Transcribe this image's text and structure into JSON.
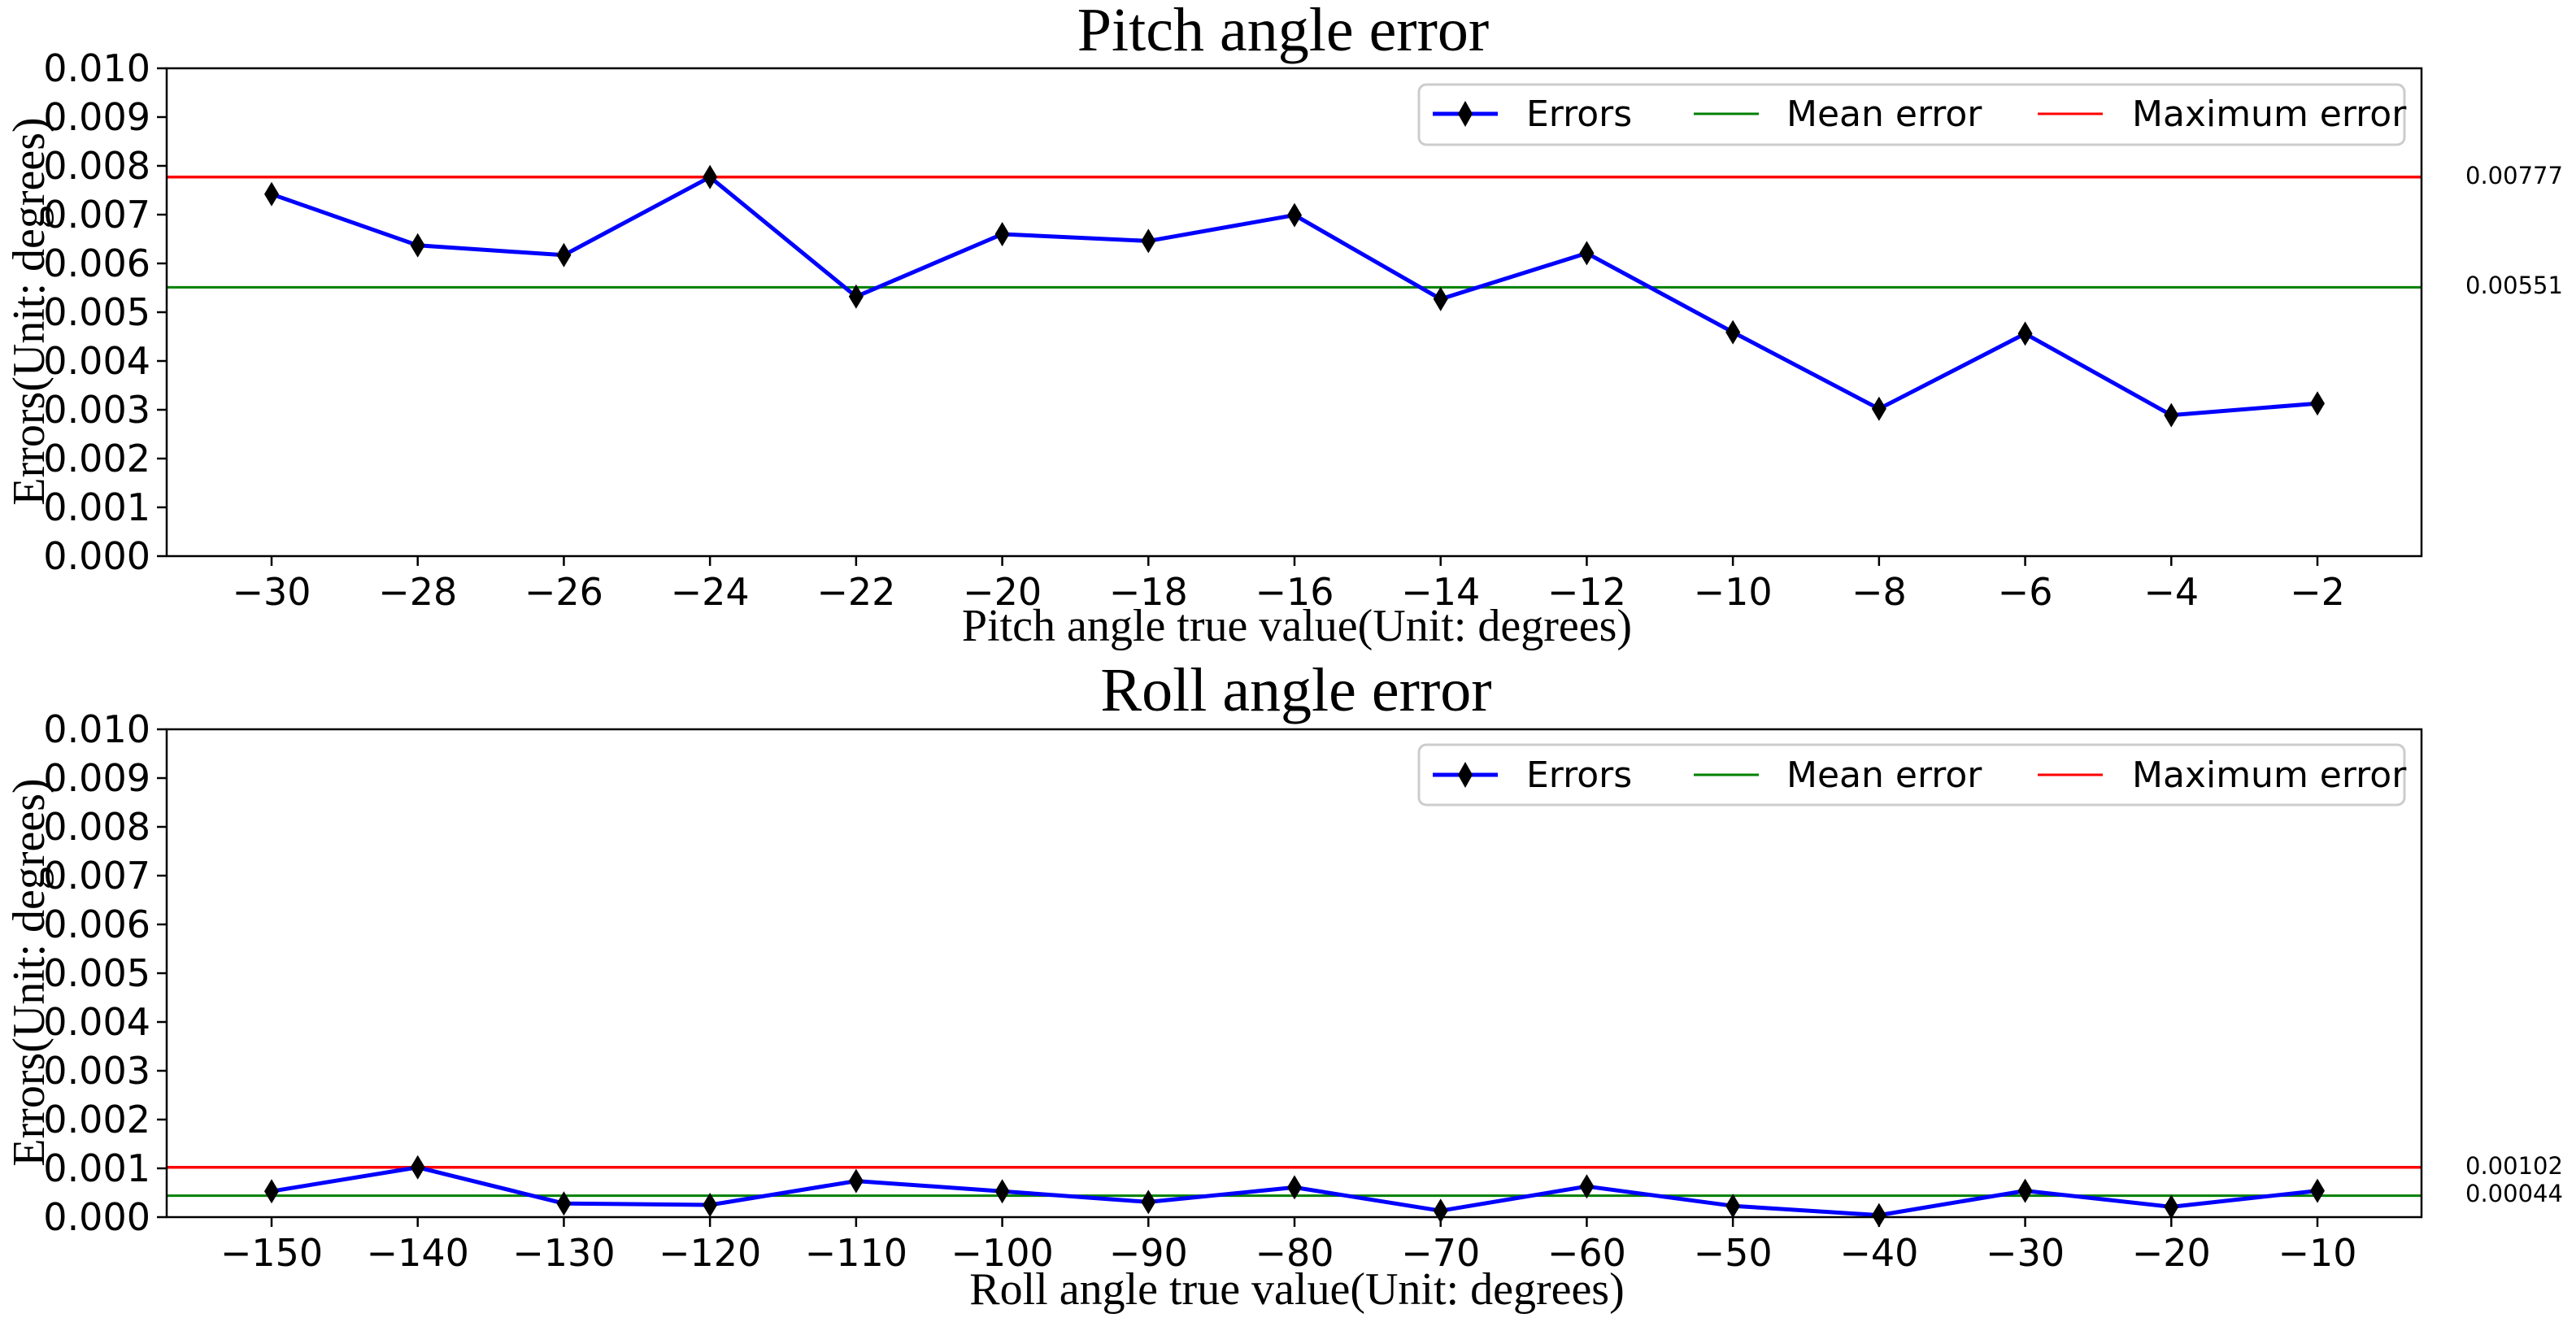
{
  "chart_data": [
    {
      "type": "line",
      "title": "Pitch angle error",
      "xlabel": "Pitch angle true value(Unit: degrees)",
      "ylabel": "Errors(Unit: degrees)",
      "x": [
        -30,
        -28,
        -26,
        -24,
        -22,
        -20,
        -18,
        -16,
        -14,
        -12,
        -10,
        -8,
        -6,
        -4,
        -2
      ],
      "ylim": [
        0,
        0.01
      ],
      "yticks": [
        0.0,
        0.001,
        0.002,
        0.003,
        0.004,
        0.005,
        0.006,
        0.007,
        0.008,
        0.009,
        0.01
      ],
      "ytick_labels": [
        "0.000",
        "0.001",
        "0.002",
        "0.003",
        "0.004",
        "0.005",
        "0.006",
        "0.007",
        "0.008",
        "0.009",
        "0.010"
      ],
      "xtick_labels": [
        "−30",
        "−28",
        "−26",
        "−24",
        "−22",
        "−20",
        "−18",
        "−16",
        "−14",
        "−12",
        "−10",
        "−8",
        "−6",
        "−4",
        "−2"
      ],
      "series": [
        {
          "name": "Errors",
          "color": "#0000ff",
          "marker_color": "#000000",
          "values": [
            0.00742,
            0.00637,
            0.00617,
            0.00777,
            0.00532,
            0.0066,
            0.00646,
            0.00699,
            0.00527,
            0.00621,
            0.00459,
            0.00302,
            0.00456,
            0.00289,
            0.00313
          ]
        },
        {
          "name": "Mean error",
          "color": "#008000",
          "value": 0.00551
        },
        {
          "name": "Maximum error",
          "color": "#ff0000",
          "value": 0.00777
        }
      ],
      "side_labels": {
        "mean": "0.00551",
        "max": "0.00777"
      },
      "legend": [
        "Errors",
        "Mean error",
        "Maximum error"
      ],
      "legend_loc": "top-right",
      "grid": false
    },
    {
      "type": "line",
      "title": "Roll angle error",
      "xlabel": "Roll angle true value(Unit: degrees)",
      "ylabel": "Errors(Unit: degrees)",
      "x": [
        -150,
        -140,
        -130,
        -120,
        -110,
        -100,
        -90,
        -80,
        -70,
        -60,
        -50,
        -40,
        -30,
        -20,
        -10
      ],
      "ylim": [
        0,
        0.01
      ],
      "yticks": [
        0.0,
        0.001,
        0.002,
        0.003,
        0.004,
        0.005,
        0.006,
        0.007,
        0.008,
        0.009,
        0.01
      ],
      "ytick_labels": [
        "0.000",
        "0.001",
        "0.002",
        "0.003",
        "0.004",
        "0.005",
        "0.006",
        "0.007",
        "0.008",
        "0.009",
        "0.010"
      ],
      "xtick_labels": [
        "−150",
        "−140",
        "−130",
        "−120",
        "−110",
        "−100",
        "−90",
        "−80",
        "−70",
        "−60",
        "−50",
        "−40",
        "−30",
        "−20",
        "−10"
      ],
      "series": [
        {
          "name": "Errors",
          "color": "#0000ff",
          "marker_color": "#000000",
          "values": [
            0.00053,
            0.00102,
            0.00028,
            0.00025,
            0.00074,
            0.00053,
            0.00031,
            0.00061,
            0.00013,
            0.00063,
            0.00023,
            4e-05,
            0.00054,
            0.00021,
            0.00054
          ]
        },
        {
          "name": "Mean error",
          "color": "#008000",
          "value": 0.00044
        },
        {
          "name": "Maximum error",
          "color": "#ff0000",
          "value": 0.00102
        }
      ],
      "side_labels": {
        "mean": "0.00044",
        "max": "0.00102"
      },
      "legend": [
        "Errors",
        "Mean error",
        "Maximum error"
      ],
      "legend_loc": "top-right",
      "grid": false
    }
  ]
}
